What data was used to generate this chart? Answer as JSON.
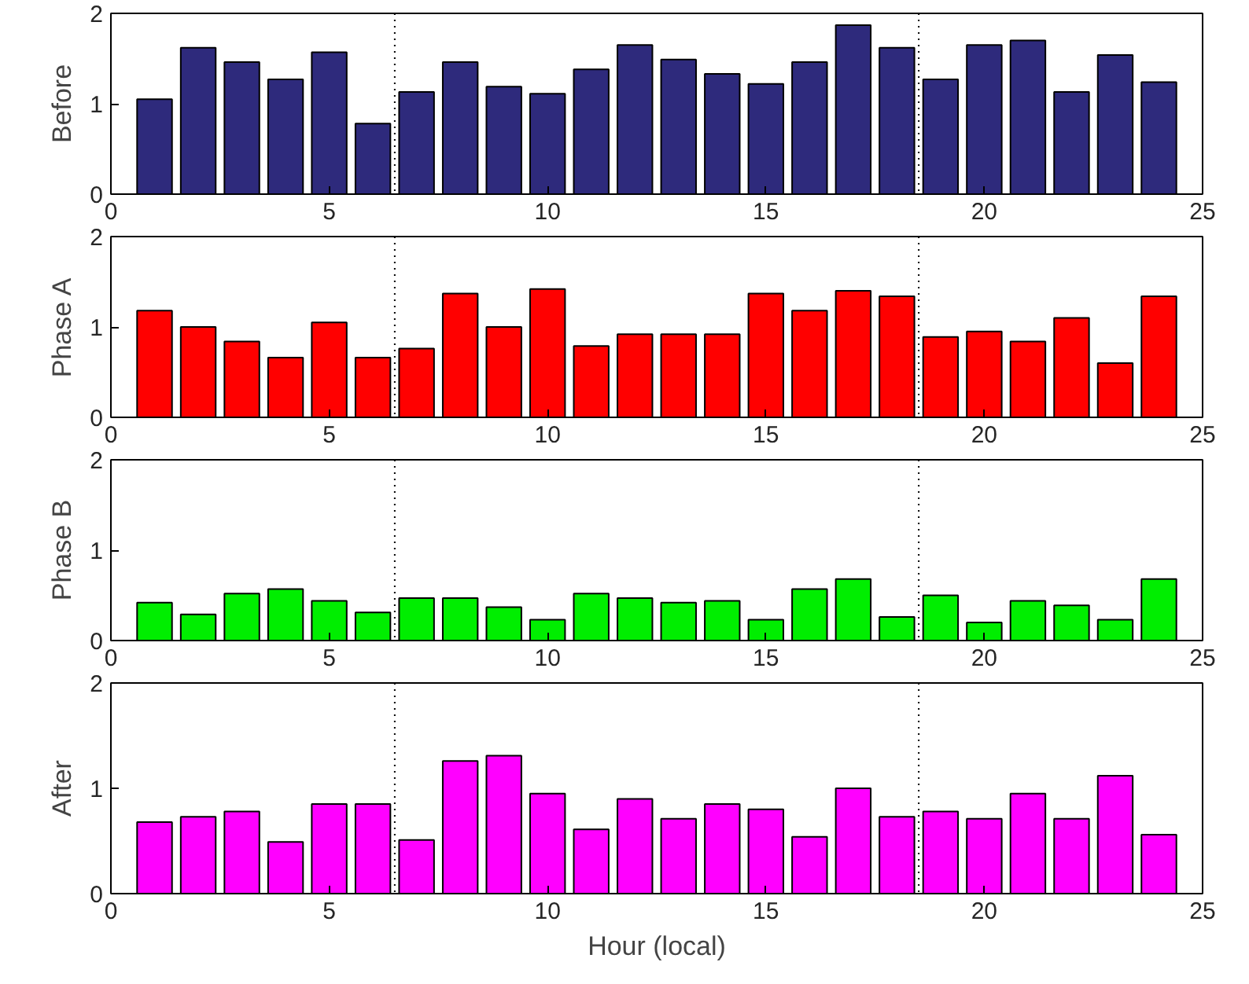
{
  "chart_data": [
    {
      "type": "bar",
      "ylabel": "Before",
      "color": "#2e2a7c",
      "x": [
        1,
        2,
        3,
        4,
        5,
        6,
        7,
        8,
        9,
        10,
        11,
        12,
        13,
        14,
        15,
        16,
        17,
        18,
        19,
        20,
        21,
        22,
        23,
        24
      ],
      "values": [
        1.05,
        1.62,
        1.46,
        1.27,
        1.57,
        0.78,
        1.13,
        1.46,
        1.19,
        1.11,
        1.38,
        1.65,
        1.49,
        1.33,
        1.22,
        1.46,
        1.87,
        1.62,
        1.27,
        1.65,
        1.7,
        1.13,
        1.54,
        1.24
      ],
      "xlim": [
        0,
        25
      ],
      "xticks": [
        0,
        5,
        10,
        15,
        20,
        25
      ],
      "ylim": [
        0,
        2
      ],
      "yticks": [
        0,
        1,
        2
      ],
      "grid": false,
      "ref_lines": [
        {
          "axis": "x",
          "value": 6.5,
          "color": "#000000",
          "line_style": "dotted"
        },
        {
          "axis": "x",
          "value": 18.5,
          "color": "#000000",
          "line_style": "dotted"
        }
      ]
    },
    {
      "type": "bar",
      "ylabel": "Phase A",
      "color": "#ff0000",
      "x": [
        1,
        2,
        3,
        4,
        5,
        6,
        7,
        8,
        9,
        10,
        11,
        12,
        13,
        14,
        15,
        16,
        17,
        18,
        19,
        20,
        21,
        22,
        23,
        24
      ],
      "values": [
        1.18,
        1.0,
        0.84,
        0.66,
        1.05,
        0.66,
        0.76,
        1.37,
        1.0,
        1.42,
        0.79,
        0.92,
        0.92,
        0.92,
        1.37,
        1.18,
        1.4,
        1.34,
        0.89,
        0.95,
        0.84,
        1.1,
        0.6,
        1.34
      ],
      "xlim": [
        0,
        25
      ],
      "xticks": [
        0,
        5,
        10,
        15,
        20,
        25
      ],
      "ylim": [
        0,
        2
      ],
      "yticks": [
        0,
        1,
        2
      ],
      "grid": false,
      "ref_lines": [
        {
          "axis": "x",
          "value": 6.5,
          "color": "#000000",
          "line_style": "dotted"
        },
        {
          "axis": "x",
          "value": 18.5,
          "color": "#000000",
          "line_style": "dotted"
        }
      ]
    },
    {
      "type": "bar",
      "ylabel": "Phase B",
      "color": "#00ee00",
      "x": [
        1,
        2,
        3,
        4,
        5,
        6,
        7,
        8,
        9,
        10,
        11,
        12,
        13,
        14,
        15,
        16,
        17,
        18,
        19,
        20,
        21,
        22,
        23,
        24
      ],
      "values": [
        0.42,
        0.29,
        0.52,
        0.57,
        0.44,
        0.31,
        0.47,
        0.47,
        0.37,
        0.23,
        0.52,
        0.47,
        0.42,
        0.44,
        0.23,
        0.57,
        0.68,
        0.26,
        0.5,
        0.2,
        0.44,
        0.39,
        0.23,
        0.68
      ],
      "xlim": [
        0,
        25
      ],
      "xticks": [
        0,
        5,
        10,
        15,
        20,
        25
      ],
      "ylim": [
        0,
        2
      ],
      "yticks": [
        0,
        1,
        2
      ],
      "grid": false,
      "ref_lines": [
        {
          "axis": "x",
          "value": 6.5,
          "color": "#000000",
          "line_style": "dotted"
        },
        {
          "axis": "x",
          "value": 18.5,
          "color": "#000000",
          "line_style": "dotted"
        }
      ]
    },
    {
      "type": "bar",
      "ylabel": "After",
      "xlabel": "Hour (local)",
      "color": "#ff00ff",
      "x": [
        1,
        2,
        3,
        4,
        5,
        6,
        7,
        8,
        9,
        10,
        11,
        12,
        13,
        14,
        15,
        16,
        17,
        18,
        19,
        20,
        21,
        22,
        23,
        24
      ],
      "values": [
        0.68,
        0.73,
        0.78,
        0.49,
        0.85,
        0.85,
        0.51,
        1.26,
        1.31,
        0.95,
        0.61,
        0.9,
        0.71,
        0.85,
        0.8,
        0.54,
        1.0,
        0.73,
        0.78,
        0.71,
        0.95,
        0.71,
        1.12,
        0.56
      ],
      "xlim": [
        0,
        25
      ],
      "xticks": [
        0,
        5,
        10,
        15,
        20,
        25
      ],
      "ylim": [
        0,
        2
      ],
      "yticks": [
        0,
        1,
        2
      ],
      "grid": false,
      "ref_lines": [
        {
          "axis": "x",
          "value": 6.5,
          "color": "#000000",
          "line_style": "dotted"
        },
        {
          "axis": "x",
          "value": 18.5,
          "color": "#000000",
          "line_style": "dotted"
        }
      ]
    }
  ]
}
